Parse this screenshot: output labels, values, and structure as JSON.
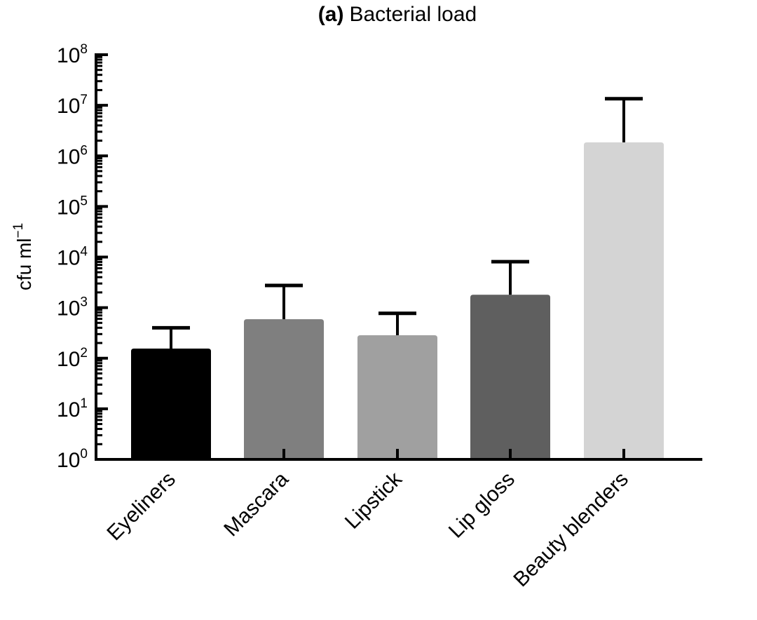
{
  "chart_data": {
    "type": "bar",
    "title_prefix": "(a)",
    "title": "Bacterial load",
    "xlabel": "",
    "ylabel": "cfu ml",
    "ylabel_superscript": "−1",
    "yscale": "log",
    "ylim": [
      1,
      100000000
    ],
    "y_ticks": [
      {
        "base": "10",
        "exp": "0",
        "value": 1
      },
      {
        "base": "10",
        "exp": "1",
        "value": 10
      },
      {
        "base": "10",
        "exp": "2",
        "value": 100
      },
      {
        "base": "10",
        "exp": "3",
        "value": 1000
      },
      {
        "base": "10",
        "exp": "4",
        "value": 10000
      },
      {
        "base": "10",
        "exp": "5",
        "value": 100000
      },
      {
        "base": "10",
        "exp": "6",
        "value": 1000000
      },
      {
        "base": "10",
        "exp": "7",
        "value": 10000000
      },
      {
        "base": "10",
        "exp": "8",
        "value": 100000000
      }
    ],
    "grid": false,
    "legend": "none",
    "categories": [
      "Eyeliners",
      "Mascara",
      "Lipstick",
      "Lip gloss",
      "Beauty blenders"
    ],
    "values": [
      155,
      590,
      285,
      1800,
      1850000
    ],
    "error_upper": [
      400,
      2750,
      770,
      8100,
      13500000
    ],
    "colors": [
      "#000000",
      "#7f7f7f",
      "#a0a0a0",
      "#5f5f5f",
      "#d4d4d4"
    ]
  }
}
